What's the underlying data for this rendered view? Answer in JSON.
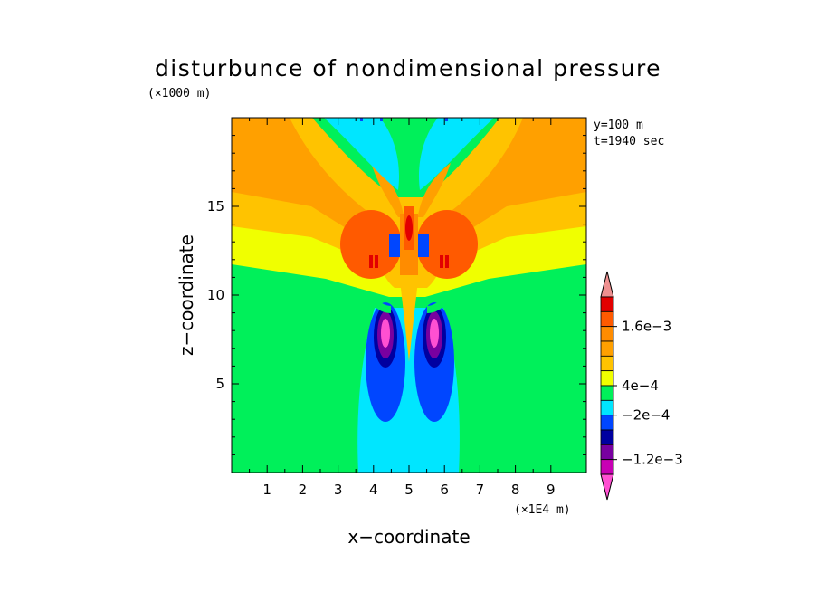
{
  "chart_data": {
    "type": "heatmap",
    "title": "disturbunce of nondimensional pressure",
    "y_unit": "(×1000 m)",
    "x_unit": "(×1E4 m)",
    "xlabel": "x−coordinate",
    "ylabel": "z−coordinate",
    "annotations": [
      "y=100 m",
      "t=1940 sec"
    ],
    "xlim": [
      0,
      10
    ],
    "ylim": [
      0,
      20
    ],
    "x_ticks": [
      "1",
      "2",
      "3",
      "4",
      "5",
      "6",
      "7",
      "8",
      "9"
    ],
    "y_ticks": [
      "5",
      "10",
      "15"
    ],
    "y_tick_values": [
      5,
      10,
      15
    ],
    "colorbar": {
      "labels": [
        "1.6e−3",
        "4e−4",
        "−2e−4",
        "−1.2e−3"
      ],
      "colors": [
        "#ee9090",
        "#e20000",
        "#ff5a00",
        "#ff8c00",
        "#ffa000",
        "#ffc300",
        "#f0ff00",
        "#00f05a",
        "#00e6ff",
        "#0046ff",
        "#0000a0",
        "#7800a0",
        "#c800b4",
        "#ff50d2"
      ],
      "colors_order": "top-to-bottom"
    }
  }
}
